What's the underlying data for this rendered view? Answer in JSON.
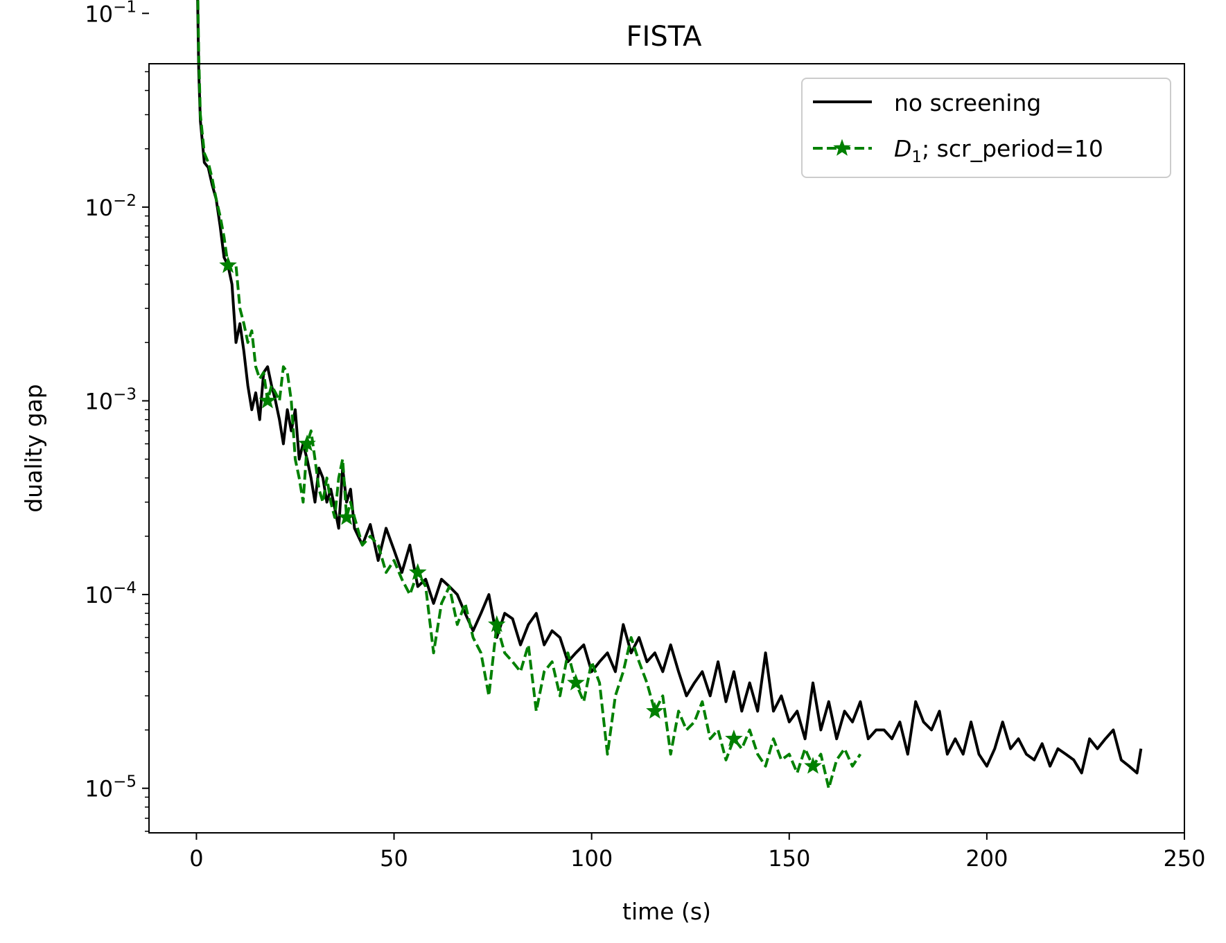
{
  "chart_data": {
    "type": "line",
    "title": "FISTA",
    "xlabel": "time (s)",
    "ylabel": "duality gap",
    "xlim": [
      -12,
      250
    ],
    "ylim_log10": [
      -5.23,
      -1.26
    ],
    "yscale": "log",
    "xticks": [
      0,
      50,
      100,
      150,
      200,
      250
    ],
    "xtick_labels": [
      "0",
      "50",
      "100",
      "150",
      "200",
      "250"
    ],
    "yticks": [
      1e-05,
      0.0001,
      0.001,
      0.01,
      0.1
    ],
    "ytick_labels": [
      {
        "base": "10",
        "exp": "−5"
      },
      {
        "base": "10",
        "exp": "−4"
      },
      {
        "base": "10",
        "exp": "−3"
      },
      {
        "base": "10",
        "exp": "−2"
      },
      {
        "base": "10",
        "exp": "−1"
      }
    ],
    "grid": false,
    "legend_position": "top-right",
    "legend": [
      {
        "label": "no screening",
        "math": "",
        "sub": ""
      },
      {
        "label": "; scr_period=10",
        "math": "D",
        "sub": "1"
      }
    ],
    "series": [
      {
        "name": "no screening",
        "color": "#000000",
        "dash": "solid",
        "marker": "none",
        "x": [
          0,
          0.3,
          0.6,
          1,
          2,
          3,
          4,
          5,
          6,
          7,
          8,
          9,
          10,
          11,
          12,
          13,
          14,
          15,
          16,
          17,
          18,
          19,
          20,
          21,
          22,
          23,
          24,
          25,
          26,
          27,
          28,
          29,
          30,
          31,
          32,
          33,
          34,
          35,
          36,
          37,
          38,
          39,
          40,
          42,
          44,
          46,
          48,
          50,
          52,
          54,
          56,
          58,
          60,
          62,
          64,
          66,
          68,
          70,
          72,
          74,
          76,
          78,
          80,
          82,
          84,
          86,
          88,
          90,
          92,
          94,
          96,
          98,
          100,
          102,
          104,
          106,
          108,
          110,
          112,
          114,
          116,
          118,
          120,
          122,
          124,
          126,
          128,
          130,
          132,
          134,
          136,
          138,
          140,
          142,
          144,
          146,
          148,
          150,
          152,
          154,
          156,
          158,
          160,
          162,
          164,
          166,
          168,
          170,
          172,
          174,
          176,
          178,
          180,
          182,
          184,
          186,
          188,
          190,
          192,
          194,
          196,
          198,
          200,
          202,
          204,
          206,
          208,
          210,
          212,
          214,
          216,
          218,
          220,
          222,
          224,
          226,
          228,
          230,
          232,
          234,
          236,
          238,
          239
        ],
        "y": [
          0.37,
          0.12,
          0.05,
          0.028,
          0.017,
          0.016,
          0.013,
          0.011,
          0.008,
          0.0055,
          0.005,
          0.004,
          0.002,
          0.0025,
          0.0018,
          0.0012,
          0.0009,
          0.0011,
          0.0008,
          0.0014,
          0.0015,
          0.0012,
          0.001,
          0.0008,
          0.0006,
          0.0009,
          0.0007,
          0.0009,
          0.0005,
          0.0006,
          0.0005,
          0.0004,
          0.0003,
          0.00045,
          0.0004,
          0.0003,
          0.00035,
          0.00028,
          0.00022,
          0.00045,
          0.0003,
          0.00035,
          0.00022,
          0.00018,
          0.00023,
          0.00015,
          0.00022,
          0.00017,
          0.00013,
          0.00018,
          0.00011,
          0.00012,
          9e-05,
          0.00012,
          0.00011,
          0.0001,
          8e-05,
          6.5e-05,
          8e-05,
          0.0001,
          6e-05,
          8e-05,
          7.5e-05,
          5.5e-05,
          7e-05,
          8e-05,
          5.5e-05,
          6.5e-05,
          6e-05,
          4.5e-05,
          5e-05,
          5.5e-05,
          4e-05,
          4.5e-05,
          5e-05,
          4e-05,
          7e-05,
          5e-05,
          6e-05,
          4.5e-05,
          5e-05,
          4e-05,
          5.5e-05,
          4e-05,
          3e-05,
          3.5e-05,
          4e-05,
          3e-05,
          4.5e-05,
          2.8e-05,
          4e-05,
          2.5e-05,
          3.5e-05,
          2.5e-05,
          5e-05,
          2.5e-05,
          3e-05,
          2.2e-05,
          2.5e-05,
          1.8e-05,
          3.5e-05,
          2e-05,
          2.8e-05,
          1.8e-05,
          2.5e-05,
          2.2e-05,
          2.8e-05,
          1.8e-05,
          2e-05,
          2e-05,
          1.8e-05,
          2.2e-05,
          1.5e-05,
          2.8e-05,
          2.2e-05,
          2e-05,
          2.5e-05,
          1.5e-05,
          1.8e-05,
          1.5e-05,
          2.2e-05,
          1.5e-05,
          1.3e-05,
          1.6e-05,
          2.2e-05,
          1.6e-05,
          1.8e-05,
          1.5e-05,
          1.4e-05,
          1.7e-05,
          1.3e-05,
          1.6e-05,
          1.5e-05,
          1.4e-05,
          1.2e-05,
          1.8e-05,
          1.6e-05,
          1.8e-05,
          2e-05,
          1.4e-05,
          1.3e-05,
          1.2e-05,
          1.6e-05
        ]
      },
      {
        "name": "D₁; scr_period=10",
        "color": "#008000",
        "dash": "dashed",
        "marker": "star",
        "marker_every": 10,
        "x": [
          0,
          0.3,
          0.6,
          1,
          2,
          3,
          4,
          5,
          6,
          7,
          8,
          9,
          10,
          11,
          12,
          13,
          14,
          15,
          16,
          17,
          18,
          19,
          20,
          21,
          22,
          23,
          24,
          25,
          26,
          27,
          28,
          29,
          30,
          31,
          32,
          33,
          34,
          35,
          36,
          37,
          38,
          39,
          40,
          42,
          44,
          46,
          48,
          50,
          52,
          54,
          56,
          58,
          60,
          62,
          64,
          66,
          68,
          70,
          72,
          74,
          76,
          78,
          80,
          82,
          84,
          86,
          88,
          90,
          92,
          94,
          96,
          98,
          100,
          102,
          104,
          106,
          108,
          110,
          112,
          114,
          116,
          118,
          120,
          122,
          124,
          126,
          128,
          130,
          132,
          134,
          136,
          138,
          140,
          142,
          144,
          146,
          148,
          150,
          152,
          154,
          156,
          158,
          160,
          162,
          164,
          166,
          168
        ],
        "y": [
          0.37,
          0.15,
          0.06,
          0.03,
          0.019,
          0.017,
          0.014,
          0.011,
          0.009,
          0.007,
          0.005,
          0.005,
          0.005,
          0.003,
          0.0025,
          0.002,
          0.0023,
          0.0015,
          0.0013,
          0.0014,
          0.001,
          0.0012,
          0.0011,
          0.001,
          0.0015,
          0.0014,
          0.001,
          0.0005,
          0.0004,
          0.0003,
          0.0006,
          0.0007,
          0.0005,
          0.00035,
          0.0003,
          0.0004,
          0.0003,
          0.00025,
          0.0004,
          0.0005,
          0.00025,
          0.0003,
          0.00025,
          0.00018,
          0.0002,
          0.00018,
          0.00013,
          0.00015,
          0.00012,
          0.0001,
          0.00013,
          0.00011,
          5e-05,
          9e-05,
          0.00011,
          7e-05,
          9e-05,
          6e-05,
          5e-05,
          3e-05,
          7e-05,
          5e-05,
          4.5e-05,
          4e-05,
          5.5e-05,
          2.5e-05,
          4e-05,
          4.5e-05,
          3e-05,
          5e-05,
          3.5e-05,
          2.8e-05,
          4.5e-05,
          3.5e-05,
          1.5e-05,
          3e-05,
          4e-05,
          6e-05,
          4.5e-05,
          3.5e-05,
          2.5e-05,
          3e-05,
          1.5e-05,
          2.5e-05,
          2e-05,
          2.2e-05,
          2.8e-05,
          1.8e-05,
          2e-05,
          1.4e-05,
          1.8e-05,
          1.6e-05,
          2e-05,
          1.5e-05,
          1.3e-05,
          1.8e-05,
          1.4e-05,
          1.5e-05,
          1.2e-05,
          1.6e-05,
          1.3e-05,
          1.5e-05,
          1e-05,
          1.4e-05,
          1.6e-05,
          1.3e-05,
          1.5e-05
        ]
      }
    ]
  }
}
